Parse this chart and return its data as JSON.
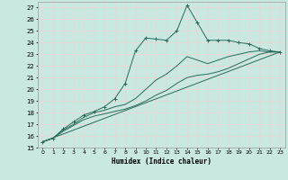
{
  "xlabel": "Humidex (Indice chaleur)",
  "bg_color": "#c8e8e0",
  "grid_color": "#d4ede8",
  "line_color": "#2a6b5a",
  "xlim": [
    -0.5,
    23.5
  ],
  "ylim": [
    15,
    27.5
  ],
  "yticks": [
    15,
    16,
    17,
    18,
    19,
    20,
    21,
    22,
    23,
    24,
    25,
    26,
    27
  ],
  "xticks": [
    0,
    1,
    2,
    3,
    4,
    5,
    6,
    7,
    8,
    9,
    10,
    11,
    12,
    13,
    14,
    15,
    16,
    17,
    18,
    19,
    20,
    21,
    22,
    23
  ],
  "series1_x": [
    0,
    1,
    2,
    3,
    4,
    5,
    6,
    7,
    8,
    9,
    10,
    11,
    12,
    13,
    14,
    15,
    16,
    17,
    18,
    19,
    20,
    21,
    22,
    23
  ],
  "series1_y": [
    15.5,
    15.8,
    16.6,
    17.2,
    17.8,
    18.1,
    18.5,
    19.2,
    20.5,
    23.3,
    24.4,
    24.3,
    24.2,
    25.0,
    27.2,
    25.7,
    24.2,
    24.2,
    24.2,
    24.0,
    23.9,
    23.5,
    23.3,
    23.2
  ],
  "series2_x": [
    0,
    1,
    2,
    3,
    4,
    5,
    6,
    7,
    8,
    9,
    10,
    11,
    12,
    13,
    14,
    15,
    16,
    17,
    18,
    19,
    20,
    21,
    22,
    23
  ],
  "series2_y": [
    15.5,
    15.8,
    16.5,
    17.0,
    17.6,
    18.0,
    18.2,
    18.5,
    18.7,
    19.2,
    20.0,
    20.8,
    21.3,
    22.0,
    22.8,
    22.5,
    22.2,
    22.5,
    22.8,
    23.0,
    23.2,
    23.3,
    23.2,
    23.2
  ],
  "series3_x": [
    0,
    1,
    2,
    3,
    4,
    5,
    6,
    7,
    8,
    9,
    10,
    11,
    12,
    13,
    14,
    15,
    16,
    17,
    18,
    19,
    20,
    21,
    22,
    23
  ],
  "series3_y": [
    15.5,
    15.8,
    16.4,
    16.9,
    17.4,
    17.7,
    17.9,
    18.1,
    18.3,
    18.6,
    19.0,
    19.5,
    19.9,
    20.5,
    21.0,
    21.2,
    21.3,
    21.5,
    21.8,
    22.2,
    22.6,
    23.0,
    23.2,
    23.2
  ],
  "series4_x": [
    0,
    23
  ],
  "series4_y": [
    15.5,
    23.2
  ]
}
